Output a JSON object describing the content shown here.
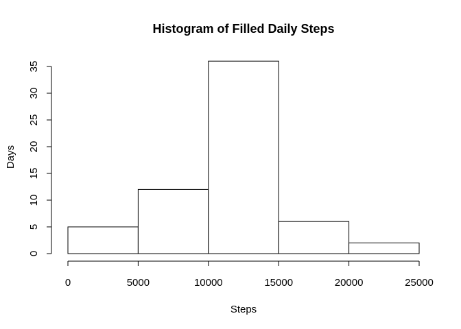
{
  "chart_data": {
    "type": "bar",
    "title": "Histogram of Filled Daily Steps",
    "xlabel": "Steps",
    "ylabel": "Days",
    "bins": [
      {
        "start": 0,
        "end": 5000,
        "count": 5
      },
      {
        "start": 5000,
        "end": 10000,
        "count": 12
      },
      {
        "start": 10000,
        "end": 15000,
        "count": 36
      },
      {
        "start": 15000,
        "end": 20000,
        "count": 6
      },
      {
        "start": 20000,
        "end": 25000,
        "count": 2
      }
    ],
    "xlim": [
      0,
      25000
    ],
    "ylim": [
      0,
      35
    ],
    "x_ticks": [
      0,
      5000,
      10000,
      15000,
      20000,
      25000
    ],
    "y_ticks": [
      0,
      5,
      10,
      15,
      20,
      25,
      30,
      35
    ],
    "grid": false,
    "legend": "none",
    "colors": {
      "bar_fill": "#ffffff",
      "bar_stroke": "#000000"
    }
  }
}
